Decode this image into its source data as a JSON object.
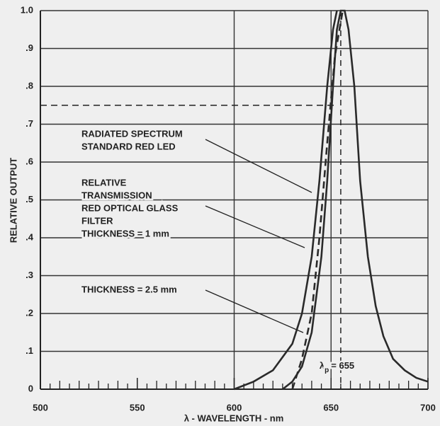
{
  "chart_data": {
    "type": "line",
    "y_label": "RELATIVE OUTPUT",
    "x_label": "λ - WAVELENGTH - nm",
    "xlim": [
      500,
      700
    ],
    "ylim": [
      0,
      1
    ],
    "xticks": [
      500,
      550,
      600,
      650,
      700
    ],
    "x_minor_ticks": [
      505,
      510,
      515,
      520,
      525,
      530,
      535,
      540,
      545,
      555,
      560,
      565,
      570,
      575,
      580,
      585,
      590,
      595,
      605,
      610,
      615,
      620,
      625,
      630,
      635,
      640,
      645,
      655,
      660,
      665,
      670,
      675,
      680,
      685,
      690,
      695
    ],
    "xgrid_values": [
      600,
      650,
      700
    ],
    "yticks": [
      0,
      {
        "value": 0.1,
        "label": ".1"
      },
      {
        "value": 0.2,
        "label": ".2"
      },
      {
        "value": 0.3,
        "label": ".3"
      },
      {
        "value": 0.4,
        "label": ".4"
      },
      {
        "value": 0.5,
        "label": ".5"
      },
      {
        "value": 0.6,
        "label": ".6"
      },
      {
        "value": 0.7,
        "label": ".7"
      },
      {
        "value": 0.8,
        "label": ".8"
      },
      {
        "value": 0.9,
        "label": ".9"
      },
      {
        "value": 1,
        "label": "1.0"
      }
    ],
    "grid": true,
    "reference_line": {
      "value": 0.75,
      "x_end": 652
    },
    "peak_annotation": {
      "symbol": "λ",
      "subscript": "p",
      "text": "= 655",
      "value": 655
    },
    "series": [
      {
        "name": "RADIATED SPECTRUM STANDARD RED LED",
        "color": "#2a2a2a",
        "dashed": false,
        "x": [
          625,
          630,
          635,
          640,
          645,
          648,
          651,
          653,
          655,
          657,
          659,
          662,
          665,
          669,
          673,
          677,
          682,
          688,
          694,
          700
        ],
        "values": [
          0,
          0.02,
          0.06,
          0.15,
          0.35,
          0.55,
          0.8,
          0.95,
          1.0,
          1.0,
          0.95,
          0.8,
          0.55,
          0.35,
          0.22,
          0.14,
          0.08,
          0.05,
          0.03,
          0.02
        ]
      },
      {
        "name": "THICKNESS = 1 mm",
        "color": "#2a2a2a",
        "dashed": false,
        "x": [
          600,
          610,
          620,
          630,
          635,
          640,
          644,
          648,
          651,
          653
        ],
        "values": [
          0,
          0.02,
          0.05,
          0.12,
          0.2,
          0.35,
          0.55,
          0.8,
          0.95,
          1.0
        ]
      },
      {
        "name": "THICKNESS = 2.5 mm",
        "color": "#2a2a2a",
        "dashed": true,
        "x": [
          630,
          635,
          640,
          644,
          648,
          652,
          656
        ],
        "values": [
          0,
          0.08,
          0.2,
          0.4,
          0.65,
          0.88,
          1.0
        ]
      }
    ],
    "annotations": [
      {
        "lines": [
          "RADIATED SPECTRUM",
          "STANDARD RED LED"
        ]
      },
      {
        "lines": [
          "RELATIVE",
          "TRANSMISSION",
          "RED OPTICAL GLASS",
          "FILTER",
          "THICKNESS = 1 mm"
        ]
      },
      {
        "lines": [
          "THICKNESS = 2.5 mm"
        ]
      }
    ]
  }
}
